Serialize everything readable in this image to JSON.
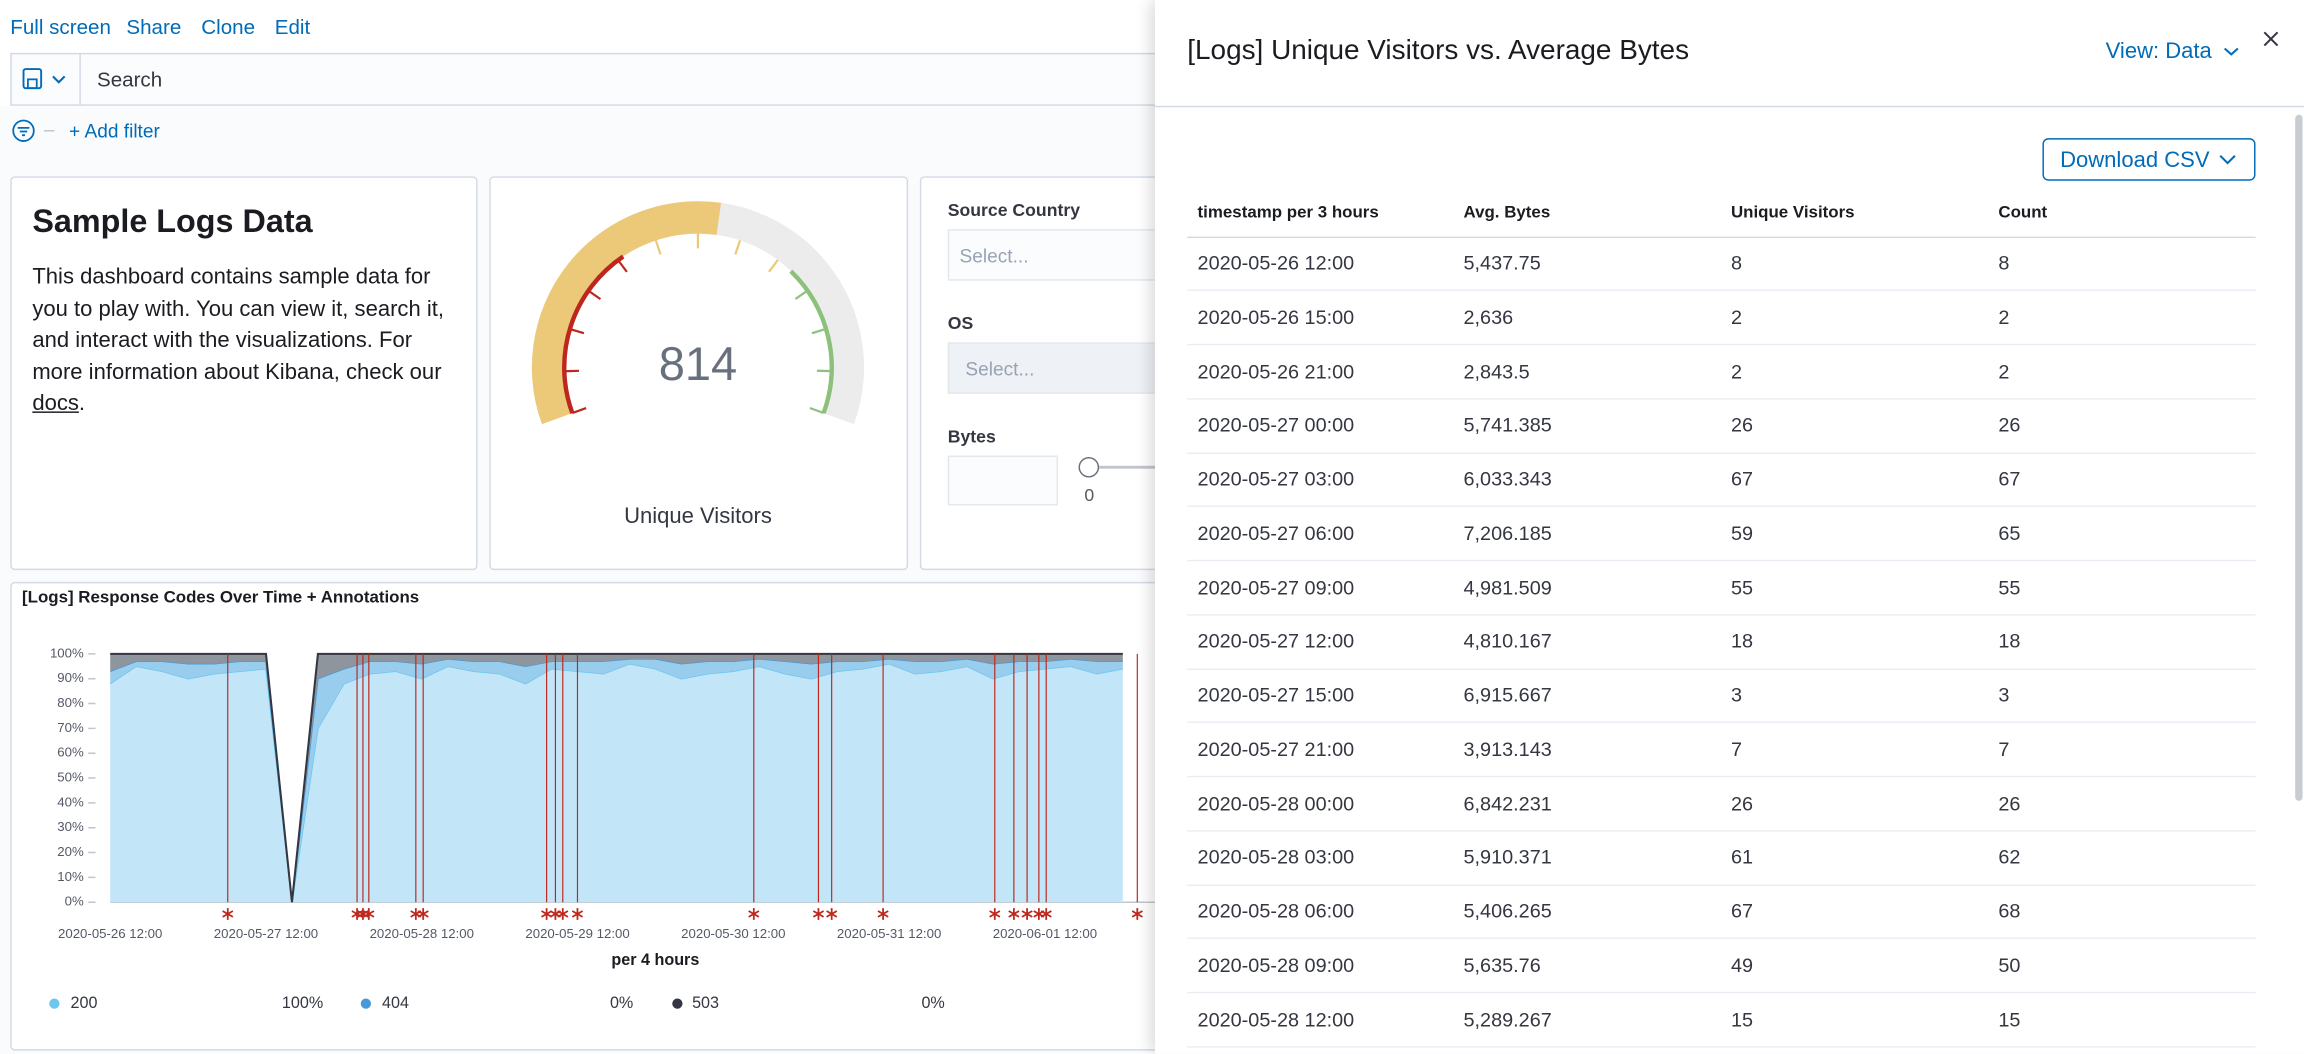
{
  "toolbar": [
    "Full screen",
    "Share",
    "Clone",
    "Edit"
  ],
  "search_placeholder": "Search",
  "add_filter": "+ Add filter",
  "markdown": {
    "title": "Sample Logs Data",
    "body": "This dashboard contains sample data for you to play with. You can view it, search it, and interact with the visualizations. For more information about Kibana, check our ",
    "link": "docs",
    "end": "."
  },
  "gauge": {
    "value": 814,
    "label": "Unique Visitors"
  },
  "controls": {
    "country_label": "Source Country",
    "country_placeholder": "Select...",
    "os_label": "OS",
    "os_placeholder": "Select...",
    "bytes_label": "Bytes",
    "slider_min": 0
  },
  "chart_data": {
    "type": "area",
    "title": "[Logs] Response Codes Over Time + Annotations",
    "x_label": "per 4 hours",
    "categories": [
      "2020-05-26 12:00",
      null,
      null,
      null,
      null,
      null,
      "2020-05-27 12:00",
      null,
      null,
      null,
      null,
      null,
      "2020-05-28 12:00",
      null,
      null,
      null,
      null,
      null,
      "2020-05-29 12:00",
      null,
      null,
      null,
      null,
      null,
      "2020-05-30 12:00",
      null,
      null,
      null,
      null,
      null,
      "2020-05-31 12:00",
      null,
      null,
      null,
      null,
      null,
      "2020-06-01 12:00",
      null,
      null,
      null
    ],
    "ylim": [
      0,
      100
    ],
    "yticks": [
      {
        "value": 0,
        "label": "0%"
      },
      {
        "value": 10,
        "label": "10%"
      },
      {
        "value": 20,
        "label": "20%"
      },
      {
        "value": 30,
        "label": "30%"
      },
      {
        "value": 40,
        "label": "40%"
      },
      {
        "value": 50,
        "label": "50%"
      },
      {
        "value": 60,
        "label": "60%"
      },
      {
        "value": 70,
        "label": "70%"
      },
      {
        "value": 80,
        "label": "80%"
      },
      {
        "value": 90,
        "label": "90%"
      },
      {
        "value": 100,
        "label": "100%"
      }
    ],
    "series": [
      {
        "name": "200",
        "color": "#6dc6ee",
        "fill": "#c2e6f8",
        "legend_value": "100%",
        "values": [
          88,
          95,
          93,
          90,
          92,
          93,
          94,
          0,
          70,
          88,
          92,
          93,
          90,
          95,
          93,
          92,
          88,
          94,
          93,
          92,
          96,
          94,
          90,
          92,
          93,
          95,
          92,
          90,
          93,
          94,
          96,
          92,
          93,
          95,
          90,
          93,
          94,
          95,
          92,
          94
        ]
      },
      {
        "name": "404",
        "color": "#4a98d6",
        "fill": "#98cdee",
        "legend_value": "0%",
        "values": [
          5,
          2,
          4,
          6,
          4,
          4,
          3,
          0,
          20,
          6,
          5,
          4,
          6,
          3,
          4,
          5,
          7,
          3,
          4,
          5,
          2,
          4,
          6,
          5,
          4,
          3,
          5,
          6,
          4,
          3,
          2,
          5,
          4,
          3,
          6,
          4,
          3,
          3,
          5,
          3
        ]
      },
      {
        "name": "503",
        "color": "#343741",
        "fill": "#8e959c",
        "legend_value": "0%",
        "values": [
          7,
          3,
          3,
          4,
          4,
          3,
          3,
          0,
          10,
          6,
          3,
          3,
          4,
          2,
          3,
          3,
          5,
          3,
          3,
          3,
          2,
          2,
          4,
          3,
          3,
          2,
          3,
          4,
          3,
          3,
          2,
          3,
          3,
          2,
          4,
          3,
          3,
          2,
          3,
          3
        ]
      }
    ]
  },
  "flyout": {
    "title": "[Logs] Unique Visitors vs. Average Bytes",
    "view": "View: Data",
    "download": "Download CSV",
    "table": {
      "columns": [
        "timestamp per 3 hours",
        "Avg. Bytes",
        "Unique Visitors",
        "Count"
      ],
      "rows": [
        [
          "2020-05-26 12:00",
          "5,437.75",
          "8",
          "8"
        ],
        [
          "2020-05-26 15:00",
          "2,636",
          "2",
          "2"
        ],
        [
          "2020-05-26 21:00",
          "2,843.5",
          "2",
          "2"
        ],
        [
          "2020-05-27 00:00",
          "5,741.385",
          "26",
          "26"
        ],
        [
          "2020-05-27 03:00",
          "6,033.343",
          "67",
          "67"
        ],
        [
          "2020-05-27 06:00",
          "7,206.185",
          "59",
          "65"
        ],
        [
          "2020-05-27 09:00",
          "4,981.509",
          "55",
          "55"
        ],
        [
          "2020-05-27 12:00",
          "4,810.167",
          "18",
          "18"
        ],
        [
          "2020-05-27 15:00",
          "6,915.667",
          "3",
          "3"
        ],
        [
          "2020-05-27 21:00",
          "3,913.143",
          "7",
          "7"
        ],
        [
          "2020-05-28 00:00",
          "6,842.231",
          "26",
          "26"
        ],
        [
          "2020-05-28 03:00",
          "5,910.371",
          "61",
          "62"
        ],
        [
          "2020-05-28 06:00",
          "5,406.265",
          "67",
          "68"
        ],
        [
          "2020-05-28 09:00",
          "5,635.76",
          "49",
          "50"
        ],
        [
          "2020-05-28 12:00",
          "5,289.267",
          "15",
          "15"
        ]
      ]
    }
  }
}
